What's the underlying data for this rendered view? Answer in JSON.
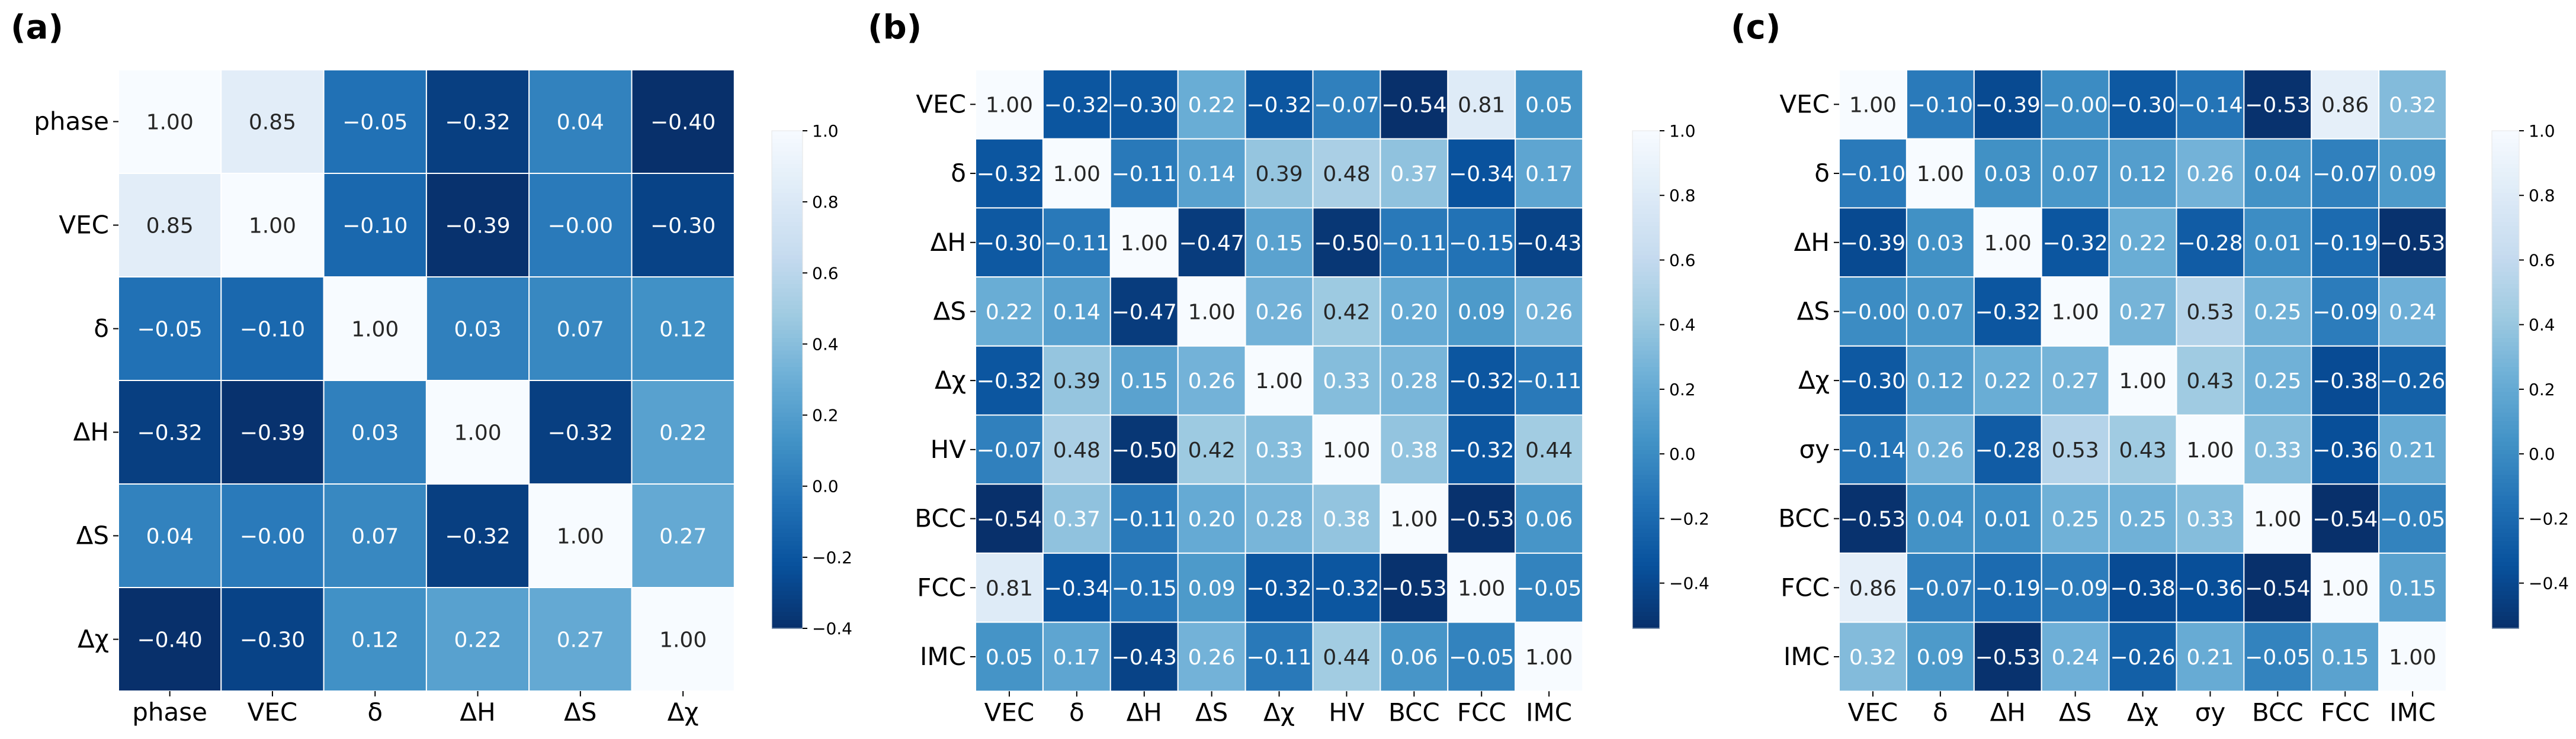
{
  "chart_data": [
    {
      "type": "heatmap",
      "panel_label": "(a)",
      "labels": [
        "phase",
        "VEC",
        "δ",
        "ΔH",
        "ΔS",
        "Δχ"
      ],
      "matrix": [
        [
          1.0,
          0.85,
          -0.05,
          -0.32,
          0.04,
          -0.4
        ],
        [
          0.85,
          1.0,
          -0.1,
          -0.39,
          -0.0,
          -0.3
        ],
        [
          -0.05,
          -0.1,
          1.0,
          0.03,
          0.07,
          0.12
        ],
        [
          -0.32,
          -0.39,
          0.03,
          1.0,
          -0.32,
          0.22
        ],
        [
          0.04,
          -0.0,
          0.07,
          -0.32,
          1.0,
          0.27
        ],
        [
          -0.4,
          -0.3,
          0.12,
          0.22,
          0.27,
          1.0
        ]
      ],
      "cell_labels": [
        [
          "1.00",
          "0.85",
          "−0.05",
          "−0.32",
          "0.04",
          "−0.40"
        ],
        [
          "0.85",
          "1.00",
          "−0.10",
          "−0.39",
          "−0.00",
          "−0.30"
        ],
        [
          "−0.05",
          "−0.10",
          "1.00",
          "0.03",
          "0.07",
          "0.12"
        ],
        [
          "−0.32",
          "−0.39",
          "0.03",
          "1.00",
          "−0.32",
          "0.22"
        ],
        [
          "0.04",
          "−0.00",
          "0.07",
          "−0.32",
          "1.00",
          "0.27"
        ],
        [
          "−0.40",
          "−0.30",
          "0.12",
          "0.22",
          "0.27",
          "1.00"
        ]
      ],
      "colorbar": {
        "range": [
          -0.4,
          1.0
        ],
        "ticks": [
          -0.4,
          -0.2,
          0.0,
          0.2,
          0.4,
          0.6,
          0.8,
          1.0
        ],
        "tick_labels": [
          "−0.4",
          "−0.2",
          "0.0",
          "0.2",
          "0.4",
          "0.6",
          "0.8",
          "1.0"
        ]
      }
    },
    {
      "type": "heatmap",
      "panel_label": "(b)",
      "labels": [
        "VEC",
        "δ",
        "ΔH",
        "ΔS",
        "Δχ",
        "HV",
        "BCC",
        "FCC",
        "IMC"
      ],
      "matrix": [
        [
          1.0,
          -0.32,
          -0.3,
          0.22,
          -0.32,
          -0.07,
          -0.54,
          0.81,
          0.05
        ],
        [
          -0.32,
          1.0,
          -0.11,
          0.14,
          0.39,
          0.48,
          0.37,
          -0.34,
          0.17
        ],
        [
          -0.3,
          -0.11,
          1.0,
          -0.47,
          0.15,
          -0.5,
          -0.11,
          -0.15,
          -0.43
        ],
        [
          0.22,
          0.14,
          -0.47,
          1.0,
          0.26,
          0.42,
          0.2,
          0.09,
          0.26
        ],
        [
          -0.32,
          0.39,
          0.15,
          0.26,
          1.0,
          0.33,
          0.28,
          -0.32,
          -0.11
        ],
        [
          -0.07,
          0.48,
          -0.5,
          0.42,
          0.33,
          1.0,
          0.38,
          -0.32,
          0.44
        ],
        [
          -0.54,
          0.37,
          -0.11,
          0.2,
          0.28,
          0.38,
          1.0,
          -0.53,
          0.06
        ],
        [
          0.81,
          -0.34,
          -0.15,
          0.09,
          -0.32,
          -0.32,
          -0.53,
          1.0,
          -0.05
        ],
        [
          0.05,
          0.17,
          -0.43,
          0.26,
          -0.11,
          0.44,
          0.06,
          -0.05,
          1.0
        ]
      ],
      "cell_labels": [
        [
          "1.00",
          "−0.32",
          "−0.30",
          "0.22",
          "−0.32",
          "−0.07",
          "−0.54",
          "0.81",
          "0.05"
        ],
        [
          "−0.32",
          "1.00",
          "−0.11",
          "0.14",
          "0.39",
          "0.48",
          "0.37",
          "−0.34",
          "0.17"
        ],
        [
          "−0.30",
          "−0.11",
          "1.00",
          "−0.47",
          "0.15",
          "−0.50",
          "−0.11",
          "−0.15",
          "−0.43"
        ],
        [
          "0.22",
          "0.14",
          "−0.47",
          "1.00",
          "0.26",
          "0.42",
          "0.20",
          "0.09",
          "0.26"
        ],
        [
          "−0.32",
          "0.39",
          "0.15",
          "0.26",
          "1.00",
          "0.33",
          "0.28",
          "−0.32",
          "−0.11"
        ],
        [
          "−0.07",
          "0.48",
          "−0.50",
          "0.42",
          "0.33",
          "1.00",
          "0.38",
          "−0.32",
          "0.44"
        ],
        [
          "−0.54",
          "0.37",
          "−0.11",
          "0.20",
          "0.28",
          "0.38",
          "1.00",
          "−0.53",
          "0.06"
        ],
        [
          "0.81",
          "−0.34",
          "−0.15",
          "0.09",
          "−0.32",
          "−0.32",
          "−0.53",
          "1.00",
          "−0.05"
        ],
        [
          "0.05",
          "0.17",
          "−0.43",
          "0.26",
          "−0.11",
          "0.44",
          "0.06",
          "−0.05",
          "1.00"
        ]
      ],
      "colorbar": {
        "range": [
          -0.54,
          1.0
        ],
        "ticks": [
          -0.4,
          -0.2,
          0.0,
          0.2,
          0.4,
          0.6,
          0.8,
          1.0
        ],
        "tick_labels": [
          "−0.4",
          "−0.2",
          "0.0",
          "0.2",
          "0.4",
          "0.6",
          "0.8",
          "1.0"
        ]
      }
    },
    {
      "type": "heatmap",
      "panel_label": "(c)",
      "labels": [
        "VEC",
        "δ",
        "ΔH",
        "ΔS",
        "Δχ",
        "σy",
        "BCC",
        "FCC",
        "IMC"
      ],
      "matrix": [
        [
          1.0,
          -0.1,
          -0.39,
          -0.0,
          -0.3,
          -0.14,
          -0.53,
          0.86,
          0.32
        ],
        [
          -0.1,
          1.0,
          0.03,
          0.07,
          0.12,
          0.26,
          0.04,
          -0.07,
          0.09
        ],
        [
          -0.39,
          0.03,
          1.0,
          -0.32,
          0.22,
          -0.28,
          0.01,
          -0.19,
          -0.53
        ],
        [
          -0.0,
          0.07,
          -0.32,
          1.0,
          0.27,
          0.53,
          0.25,
          -0.09,
          0.24
        ],
        [
          -0.3,
          0.12,
          0.22,
          0.27,
          1.0,
          0.43,
          0.25,
          -0.38,
          -0.26
        ],
        [
          -0.14,
          0.26,
          -0.28,
          0.53,
          0.43,
          1.0,
          0.33,
          -0.36,
          0.21
        ],
        [
          -0.53,
          0.04,
          0.01,
          0.25,
          0.25,
          0.33,
          1.0,
          -0.54,
          -0.05
        ],
        [
          0.86,
          -0.07,
          -0.19,
          -0.09,
          -0.38,
          -0.36,
          -0.54,
          1.0,
          0.15
        ],
        [
          0.32,
          0.09,
          -0.53,
          0.24,
          -0.26,
          0.21,
          -0.05,
          0.15,
          1.0
        ]
      ],
      "cell_labels": [
        [
          "1.00",
          "−0.10",
          "−0.39",
          "−0.00",
          "−0.30",
          "−0.14",
          "−0.53",
          "0.86",
          "0.32"
        ],
        [
          "−0.10",
          "1.00",
          "0.03",
          "0.07",
          "0.12",
          "0.26",
          "0.04",
          "−0.07",
          "0.09"
        ],
        [
          "−0.39",
          "0.03",
          "1.00",
          "−0.32",
          "0.22",
          "−0.28",
          "0.01",
          "−0.19",
          "−0.53"
        ],
        [
          "−0.00",
          "0.07",
          "−0.32",
          "1.00",
          "0.27",
          "0.53",
          "0.25",
          "−0.09",
          "0.24"
        ],
        [
          "−0.30",
          "0.12",
          "0.22",
          "0.27",
          "1.00",
          "0.43",
          "0.25",
          "−0.38",
          "−0.26"
        ],
        [
          "−0.14",
          "0.26",
          "−0.28",
          "0.53",
          "0.43",
          "1.00",
          "0.33",
          "−0.36",
          "0.21"
        ],
        [
          "−0.53",
          "0.04",
          "0.01",
          "0.25",
          "0.25",
          "0.33",
          "1.00",
          "−0.54",
          "−0.05"
        ],
        [
          "0.86",
          "−0.07",
          "−0.19",
          "−0.09",
          "−0.38",
          "−0.36",
          "−0.54",
          "1.00",
          "0.15"
        ],
        [
          "0.32",
          "0.09",
          "−0.53",
          "0.24",
          "−0.26",
          "0.21",
          "−0.05",
          "0.15",
          "1.00"
        ]
      ],
      "colorbar": {
        "range": [
          -0.54,
          1.0
        ],
        "ticks": [
          -0.4,
          -0.2,
          0.0,
          0.2,
          0.4,
          0.6,
          0.8,
          1.0
        ],
        "tick_labels": [
          "−0.4",
          "−0.2",
          "0.0",
          "0.2",
          "0.4",
          "0.6",
          "0.8",
          "1.0"
        ]
      }
    }
  ],
  "colors": {
    "colormap": [
      "#f7fbff",
      "#deebf7",
      "#c6dbef",
      "#9ecae1",
      "#6baed6",
      "#4292c6",
      "#2171b5",
      "#08519c",
      "#08306b"
    ],
    "grid_line": "#ffffff",
    "text_dark": "#262626",
    "text_light": "#ffffff"
  }
}
